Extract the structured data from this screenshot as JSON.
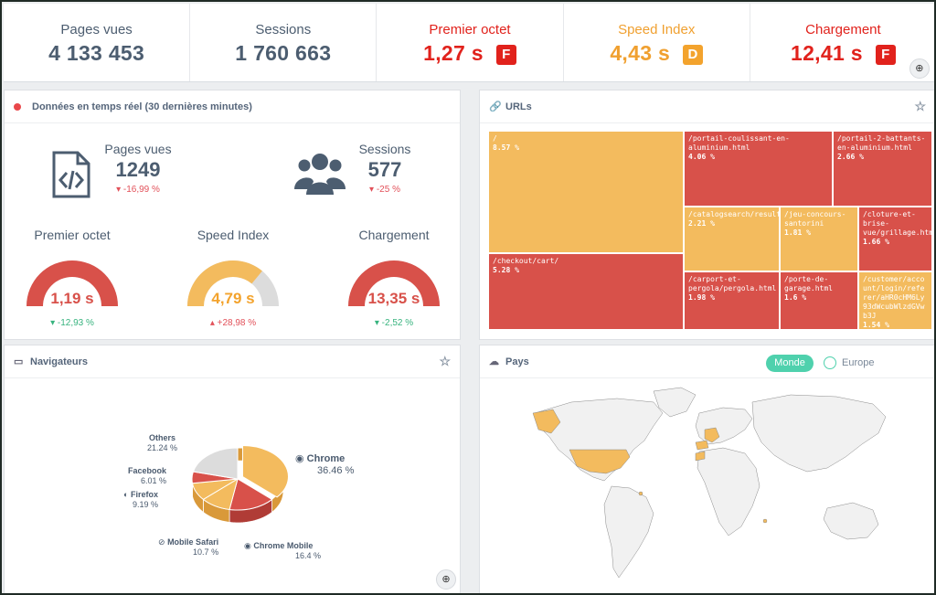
{
  "kpis": [
    {
      "label": "Pages vues",
      "value": "4 133 453",
      "tone": "neutral"
    },
    {
      "label": "Sessions",
      "value": "1 760 663",
      "tone": "neutral"
    },
    {
      "label": "Premier octet",
      "value": "1,27 s",
      "grade": "F",
      "tone": "red"
    },
    {
      "label": "Speed Index",
      "value": "4,43 s",
      "grade": "D",
      "tone": "orange"
    },
    {
      "label": "Chargement",
      "value": "12,41 s",
      "grade": "F",
      "tone": "red"
    }
  ],
  "realtime": {
    "title": "Données en temps réel (30 dernières minutes)",
    "pages": {
      "label": "Pages vues",
      "value": "1249",
      "delta": "-16,99 %"
    },
    "sessions": {
      "label": "Sessions",
      "value": "577",
      "delta": "-25 %"
    },
    "gauges": [
      {
        "label": "Premier octet",
        "value": "1,19 s",
        "fill": 1.0,
        "color": "#d8514a",
        "delta": "-12,93 %",
        "delta_dir": "down-good"
      },
      {
        "label": "Speed Index",
        "value": "4,79 s",
        "fill": 0.72,
        "color": "#f3bb5e",
        "delta": "+28,98 %",
        "delta_dir": "up-bad"
      },
      {
        "label": "Chargement",
        "value": "13,35 s",
        "fill": 1.0,
        "color": "#d8514a",
        "delta": "-2,52 %",
        "delta_dir": "down-good"
      }
    ]
  },
  "urls": {
    "title": "URLs",
    "cells": [
      {
        "path": "/",
        "pct": "8.57 %",
        "tone": "o"
      },
      {
        "path": "/portail-coulissant-en-aluminium.html",
        "pct": "4.06 %",
        "tone": "r"
      },
      {
        "path": "/portail-2-battants-en-aluminium.html",
        "pct": "2.66 %",
        "tone": "r"
      },
      {
        "path": "/catalogsearch/result/",
        "pct": "2.21 %",
        "tone": "o"
      },
      {
        "path": "/jeu-concours-santorini",
        "pct": "1.81 %",
        "tone": "o"
      },
      {
        "path": "/cloture-et-brise-vue/grillage.html",
        "pct": "1.66 %",
        "tone": "r"
      },
      {
        "path": "/checkout/cart/",
        "pct": "5.28 %",
        "tone": "r"
      },
      {
        "path": "/carport-et-pergola/pergola.html",
        "pct": "1.98 %",
        "tone": "r"
      },
      {
        "path": "/porte-de-garage.html",
        "pct": "1.6 %",
        "tone": "r"
      },
      {
        "path": "/customer/account/login/referer/aHR0cHM6Ly93dWcubWlzdGVwb3J",
        "pct": "1.54 %",
        "tone": "o"
      }
    ]
  },
  "browsers": {
    "title": "Navigateurs",
    "slices": [
      {
        "name": "Chrome",
        "pct": "36.46 %",
        "value": 36.46,
        "color": "#f3bb5e"
      },
      {
        "name": "Chrome Mobile",
        "pct": "16.4 %",
        "value": 16.4,
        "color": "#d8514a"
      },
      {
        "name": "Mobile Safari",
        "pct": "10.7 %",
        "value": 10.7,
        "color": "#f3bb5e"
      },
      {
        "name": "Firefox",
        "pct": "9.19 %",
        "value": 9.19,
        "color": "#f3bb5e"
      },
      {
        "name": "Facebook",
        "pct": "6.01 %",
        "value": 6.01,
        "color": "#d8514a"
      },
      {
        "name": "Others",
        "pct": "21.24 %",
        "value": 21.24,
        "color": "#dcdcdc"
      }
    ]
  },
  "countries": {
    "title": "Pays",
    "toggle_active": "Monde",
    "toggle_other": "Europe",
    "highlight_color": "#f3bb5e"
  }
}
